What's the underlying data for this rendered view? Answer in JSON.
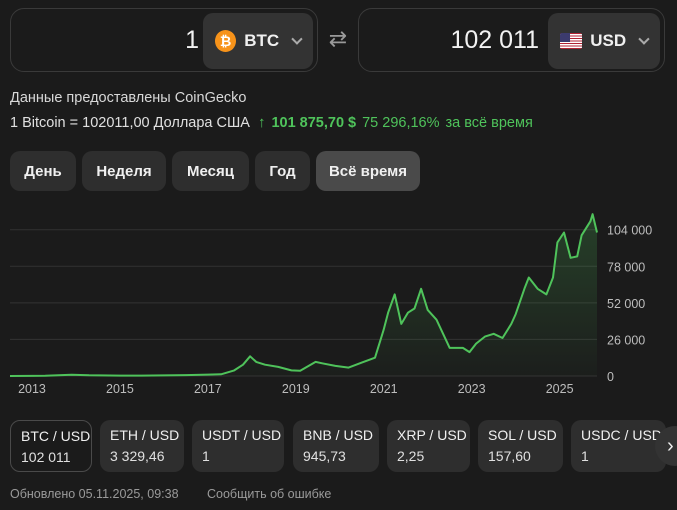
{
  "converter": {
    "from": {
      "amount": "1",
      "code": "BTC",
      "icon": "bitcoin-icon",
      "icon_glyph": "₿"
    },
    "to": {
      "amount": "102 011",
      "code": "USD",
      "icon": "us-flag-icon"
    },
    "swap_icon": "swap-arrows-icon"
  },
  "provider": "Данные предоставлены CoinGecko",
  "rate": {
    "base": "1 Bitcoin = 102011,00 Доллара США",
    "change_value": "101 875,70 $",
    "change_percent": "75 296,16%",
    "change_period": "за всё время",
    "up_color": "#4fc35b"
  },
  "periods": [
    {
      "label": "День",
      "active": false
    },
    {
      "label": "Неделя",
      "active": false
    },
    {
      "label": "Месяц",
      "active": false
    },
    {
      "label": "Год",
      "active": false
    },
    {
      "label": "Всё время",
      "active": true
    }
  ],
  "chart_data": {
    "type": "area",
    "title": "",
    "xlabel": "",
    "ylabel": "",
    "x_ticks": [
      "2013",
      "2015",
      "2017",
      "2019",
      "2021",
      "2023",
      "2025"
    ],
    "y_ticks": [
      0,
      26000,
      52000,
      78000,
      104000
    ],
    "y_tick_labels": [
      "0",
      "26 000",
      "52 000",
      "78 000",
      "104 000"
    ],
    "xlim": [
      2012.5,
      2025.85
    ],
    "ylim": [
      0,
      118000
    ],
    "grid": true,
    "color": "#4fc35b",
    "series": [
      {
        "x": [
          2012.5,
          2013.0,
          2013.3,
          2013.9,
          2014.3,
          2015.0,
          2015.5,
          2016.0,
          2016.5,
          2017.0,
          2017.3,
          2017.6,
          2017.8,
          2017.96,
          2018.1,
          2018.3,
          2018.6,
          2018.9,
          2019.1,
          2019.45,
          2019.6,
          2019.9,
          2020.2,
          2020.5,
          2020.8,
          2021.0,
          2021.1,
          2021.25,
          2021.4,
          2021.55,
          2021.7,
          2021.85,
          2022.0,
          2022.2,
          2022.35,
          2022.5,
          2022.8,
          2022.95,
          2023.1,
          2023.3,
          2023.5,
          2023.7,
          2023.9,
          2024.0,
          2024.2,
          2024.3,
          2024.5,
          2024.7,
          2024.85,
          2024.95,
          2025.1,
          2025.25,
          2025.4,
          2025.5,
          2025.6,
          2025.7,
          2025.75,
          2025.85
        ],
        "y": [
          10,
          100,
          200,
          900,
          500,
          250,
          250,
          400,
          650,
          1000,
          1200,
          4000,
          8000,
          14000,
          10000,
          8000,
          6500,
          4000,
          3700,
          10000,
          9000,
          7200,
          6000,
          9500,
          13000,
          33000,
          45000,
          58000,
          37000,
          45000,
          48000,
          62000,
          47000,
          40000,
          30000,
          20000,
          20000,
          17000,
          23000,
          28000,
          30000,
          27000,
          37000,
          44000,
          62000,
          70000,
          62000,
          58000,
          70000,
          95000,
          102000,
          84000,
          85000,
          100000,
          105000,
          110000,
          115000,
          102000
        ]
      }
    ]
  },
  "pairs": [
    {
      "name": "BTC / USD",
      "value": "102 011",
      "active": true
    },
    {
      "name": "ETH / USD",
      "value": "3 329,46",
      "active": false
    },
    {
      "name": "USDT / USD",
      "value": "1",
      "active": false
    },
    {
      "name": "BNB / USD",
      "value": "945,73",
      "active": false
    },
    {
      "name": "XRP / USD",
      "value": "2,25",
      "active": false
    },
    {
      "name": "SOL / USD",
      "value": "157,60",
      "active": false
    },
    {
      "name": "USDC / USD",
      "value": "1",
      "active": false
    }
  ],
  "next_icon": "chevron-right-icon",
  "footer": {
    "updated": "Обновлено 05.11.2025, 09:38",
    "report": "Сообщить об ошибке"
  }
}
